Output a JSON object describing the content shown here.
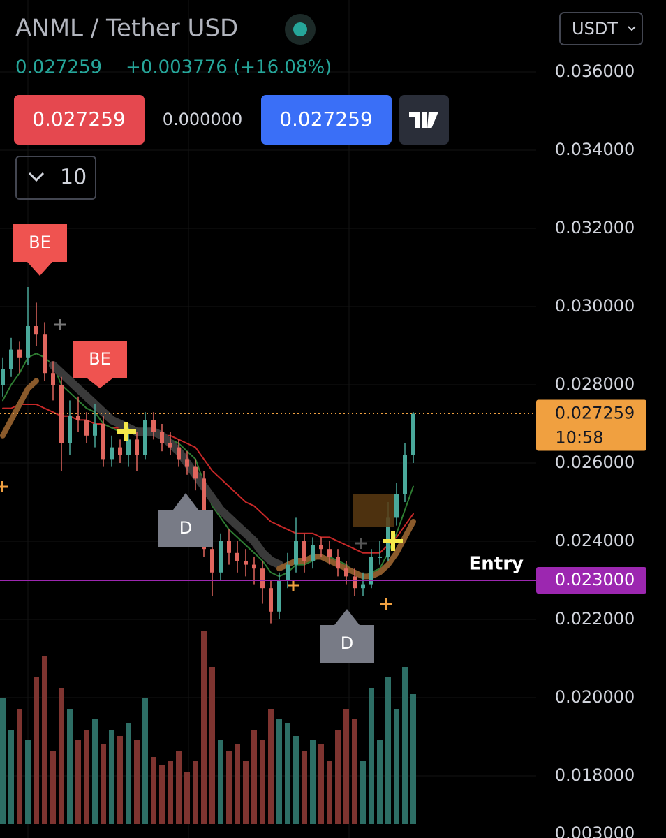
{
  "header": {
    "symbol": "ANML / Tether USD",
    "price": "0.027259",
    "change": "+0.003776 (+16.08%)",
    "sell": "0.027259",
    "spread": "0.000000",
    "buy": "0.027259",
    "interval": "10",
    "currency": "USDT"
  },
  "chart_data": {
    "type": "candlestick",
    "open": [
      0.028,
      0.0284,
      0.0289,
      0.0287,
      0.0295,
      0.0293,
      0.0283,
      0.028,
      0.0265,
      0.0272,
      0.0271,
      0.0267,
      0.027,
      0.0261,
      0.0264,
      0.0262,
      0.0266,
      0.0262,
      0.0271,
      0.0268,
      0.0265,
      0.0264,
      0.0261,
      0.0259,
      0.0256,
      0.0238,
      0.0232,
      0.024,
      0.0237,
      0.0235,
      0.0234,
      0.0233,
      0.0228,
      0.0222,
      0.023,
      0.0234,
      0.024,
      0.0235,
      0.0239,
      0.0238,
      0.0236,
      0.0233,
      0.0231,
      0.0228,
      0.0229,
      0.0236,
      0.0236,
      0.0246,
      0.0252,
      0.0262
    ],
    "high": [
      0.0287,
      0.0292,
      0.0291,
      0.0305,
      0.0301,
      0.0296,
      0.0286,
      0.0282,
      0.0276,
      0.0277,
      0.0273,
      0.0275,
      0.0272,
      0.0267,
      0.0266,
      0.0269,
      0.0268,
      0.0273,
      0.0273,
      0.027,
      0.0268,
      0.0266,
      0.0263,
      0.0261,
      0.0258,
      0.0242,
      0.0242,
      0.0243,
      0.024,
      0.0238,
      0.0236,
      0.0235,
      0.023,
      0.0232,
      0.0237,
      0.0246,
      0.0242,
      0.0241,
      0.0241,
      0.024,
      0.0238,
      0.0235,
      0.0233,
      0.0232,
      0.0238,
      0.024,
      0.025,
      0.0255,
      0.0265,
      0.0273
    ],
    "low": [
      0.0277,
      0.0282,
      0.0283,
      0.0285,
      0.029,
      0.0281,
      0.0276,
      0.0258,
      0.0262,
      0.0268,
      0.0265,
      0.0264,
      0.0259,
      0.0259,
      0.026,
      0.0259,
      0.0258,
      0.0261,
      0.0266,
      0.0263,
      0.0262,
      0.0259,
      0.0257,
      0.0253,
      0.0236,
      0.0226,
      0.023,
      0.0234,
      0.0232,
      0.0231,
      0.0229,
      0.0224,
      0.0219,
      0.022,
      0.0228,
      0.0232,
      0.0232,
      0.0233,
      0.0236,
      0.0234,
      0.0231,
      0.0229,
      0.0226,
      0.0226,
      0.0228,
      0.0234,
      0.0235,
      0.0244,
      0.025,
      0.026
    ],
    "close": [
      0.0284,
      0.0289,
      0.0287,
      0.0295,
      0.0293,
      0.0283,
      0.028,
      0.0265,
      0.0272,
      0.0271,
      0.0267,
      0.027,
      0.0261,
      0.0264,
      0.0262,
      0.0266,
      0.0262,
      0.0271,
      0.0268,
      0.0265,
      0.0264,
      0.0261,
      0.0259,
      0.0256,
      0.0238,
      0.0232,
      0.024,
      0.0237,
      0.0235,
      0.0234,
      0.0233,
      0.0228,
      0.0222,
      0.023,
      0.0234,
      0.024,
      0.0235,
      0.0239,
      0.0238,
      0.0236,
      0.0233,
      0.0231,
      0.0228,
      0.0229,
      0.0236,
      0.0236,
      0.0246,
      0.0252,
      0.0262,
      0.027259
    ],
    "up_color": "#4aa99b",
    "down_color": "#e0665e",
    "volume": [
      60,
      45,
      55,
      40,
      70,
      80,
      35,
      65,
      55,
      40,
      45,
      50,
      38,
      45,
      42,
      48,
      40,
      60,
      32,
      28,
      30,
      35,
      25,
      30,
      92,
      75,
      40,
      35,
      38,
      30,
      45,
      40,
      55,
      50,
      48,
      42,
      35,
      40,
      38,
      30,
      45,
      55,
      50,
      30,
      65,
      40,
      70,
      55,
      75,
      62
    ],
    "volume_up_color": "#2d6e65",
    "volume_down_color": "#7e3430",
    "lines": [
      {
        "color": "#c62828",
        "values": [
          0.0274,
          0.0274,
          0.0275,
          0.0275,
          0.0275,
          0.0274,
          0.0273,
          0.0272,
          0.0272,
          0.0271,
          0.0271,
          0.027,
          0.027,
          0.0269,
          0.0269,
          0.0268,
          0.0268,
          0.0268,
          0.0268,
          0.0267,
          0.0267,
          0.0266,
          0.0265,
          0.0264,
          0.0261,
          0.0258,
          0.0256,
          0.0254,
          0.0252,
          0.025,
          0.0249,
          0.0247,
          0.0245,
          0.0244,
          0.0243,
          0.0242,
          0.0242,
          0.0242,
          0.0241,
          0.0241,
          0.024,
          0.0239,
          0.0238,
          0.0237,
          0.0237,
          0.0237,
          0.0239,
          0.0241,
          0.0244,
          0.0247
        ]
      },
      {
        "color": "#2e7d32",
        "values": [
          0.0276,
          0.028,
          0.0283,
          0.0287,
          0.0288,
          0.0287,
          0.0285,
          0.028,
          0.0278,
          0.0276,
          0.0274,
          0.0273,
          0.027,
          0.0269,
          0.0268,
          0.0268,
          0.0267,
          0.0268,
          0.0268,
          0.0267,
          0.0266,
          0.0265,
          0.0263,
          0.0261,
          0.0255,
          0.0249,
          0.0246,
          0.0243,
          0.0241,
          0.0239,
          0.0237,
          0.0235,
          0.0232,
          0.0231,
          0.0232,
          0.0234,
          0.0234,
          0.0235,
          0.0236,
          0.0236,
          0.0235,
          0.0234,
          0.0232,
          0.0231,
          0.0232,
          0.0233,
          0.0237,
          0.0242,
          0.0248,
          0.0254
        ]
      },
      {
        "color": "#3a3a3a",
        "values": [
          null,
          null,
          null,
          null,
          null,
          null,
          0.0285,
          0.0283,
          0.0281,
          0.0279,
          0.0277,
          0.0275,
          0.0273,
          0.0271,
          0.027,
          0.0269,
          0.0268,
          0.0268,
          0.0268,
          0.0267,
          0.0265,
          0.0263,
          0.026,
          0.0257,
          0.0254,
          0.0251,
          0.0248,
          0.0246,
          0.0244,
          0.0242,
          0.024,
          0.0237,
          0.0235,
          0.0234,
          null,
          null,
          null,
          null,
          null,
          null,
          null,
          null,
          null,
          null,
          null,
          null,
          null,
          null,
          null,
          null
        ]
      },
      {
        "color": "#8a5a2b",
        "values": [
          0.0267,
          0.0271,
          0.0275,
          0.0279,
          0.0281,
          null,
          null,
          null,
          null,
          null,
          null,
          null,
          null,
          null,
          null,
          null,
          null,
          null,
          null,
          null,
          null,
          null,
          null,
          null,
          null,
          null,
          null,
          null,
          null,
          null,
          null,
          null,
          null,
          0.0233,
          0.0234,
          0.0235,
          0.0235,
          0.0236,
          0.0236,
          0.0235,
          0.0234,
          0.0233,
          0.0232,
          0.0231,
          0.0231,
          0.0232,
          0.0234,
          0.0237,
          0.0241,
          0.0245
        ]
      }
    ],
    "ylim": [
      0.01641,
      0.03784
    ],
    "yticks": [
      {
        "value": 0.036,
        "label": "0.036000"
      },
      {
        "value": 0.034,
        "label": "0.034000"
      },
      {
        "value": 0.032,
        "label": "0.032000"
      },
      {
        "value": 0.03,
        "label": "0.030000"
      },
      {
        "value": 0.028,
        "label": "0.028000"
      },
      {
        "value": 0.026,
        "label": "0.026000"
      },
      {
        "value": 0.024,
        "label": "0.024000"
      },
      {
        "value": 0.022,
        "label": "0.022000"
      },
      {
        "value": 0.02,
        "label": "0.020000"
      },
      {
        "value": 0.018,
        "label": "0.018000"
      }
    ],
    "bottom_label": "0.003000",
    "last_price": {
      "value": 0.027259,
      "label": "0.027259",
      "countdown": "10:58"
    },
    "entry": {
      "value": 0.023,
      "label": "0.023000",
      "text": "Entry"
    },
    "markers": [
      {
        "text": "BE"
      },
      {
        "text": "BE"
      },
      {
        "text": "D"
      },
      {
        "text": "D"
      }
    ]
  }
}
